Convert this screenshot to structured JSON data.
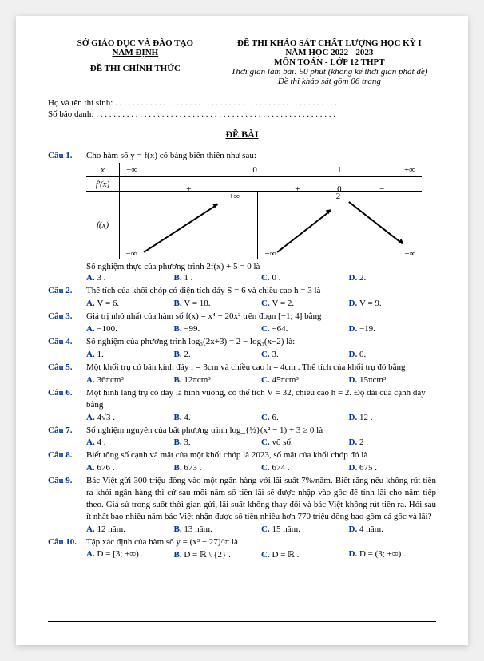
{
  "header": {
    "left_line1": "SỞ GIÁO DỤC VÀ ĐÀO TẠO",
    "left_line2": "NAM ĐỊNH",
    "left_box": "ĐỀ THI CHÍNH THỨC",
    "right_line1": "ĐỀ THI KHẢO SÁT CHẤT LƯỢNG HỌC KỲ I",
    "right_line2": "NĂM HỌC 2022 - 2023",
    "right_line3": "MÔN TOÁN - LỚP 12 THPT",
    "right_line4": "Thời gian làm bài: 90 phút (không kể thời gian phát đề)",
    "right_line5": "Đề thi khảo sát gồm 06 trang"
  },
  "student": {
    "name_label": "Họ và tên thí sinh: . . . . . . . . . . . . . . . . . . . . . . . . . . . . . . . . . . . . . . . . . . . . . . . . . . .",
    "id_label": "Số báo danh: . . . . . . . . . . . . . . . . . . . . . . . . . . . . . . . . . . . . . . . . . . . . . . . . . . . . . . ."
  },
  "section": "ĐỀ BÀI",
  "q1": {
    "num": "Câu 1.",
    "text": "Cho hàm số y = f(x) có bảng biến thiên như sau:",
    "x": "x",
    "fp": "f'(x)",
    "fx": "f(x)",
    "neg_inf": "−∞",
    "zero": "0",
    "one": "1",
    "pos_inf": "+∞",
    "plus": "+",
    "minus": "−",
    "v_posinf": "+∞",
    "v_neginf": "−∞",
    "v_neg2": "−2",
    "sub": "Số nghiệm thực của phương trình 2f(x) + 5 = 0 là",
    "A": "A. 3 .",
    "B": "B. 1 .",
    "C": "C. 0 .",
    "D": "D. 2."
  },
  "q2": {
    "num": "Câu 2.",
    "text": "Thể tích của khối chóp có diện tích đáy S = 6 và chiều cao h = 3 là",
    "A": "A. V = 6.",
    "B": "B. V = 18.",
    "C": "C. V = 2.",
    "D": "D. V = 9."
  },
  "q3": {
    "num": "Câu 3.",
    "text": "Giá trị nhỏ nhất của hàm số f(x) = x⁴ − 20x² trên đoạn [−1; 4] bằng",
    "A": "A. −100.",
    "B": "B. −99.",
    "C": "C. −64.",
    "D": "D. −19."
  },
  "q4": {
    "num": "Câu 4.",
    "text": "Số nghiệm của phương trình  log₃(2x+3) = 2 − log₃(x−2)  là:",
    "A": "A. 1.",
    "B": "B. 2.",
    "C": "C. 3.",
    "D": "D. 0."
  },
  "q5": {
    "num": "Câu 5.",
    "text": "Một khối trụ có bán kính đáy r = 3cm và chiều cao h = 4cm . Thể tích của khối trụ đó bằng",
    "A": "A. 36πcm³",
    "B": "B. 12πcm³",
    "C": "C. 45πcm³",
    "D": "D. 15πcm³"
  },
  "q6": {
    "num": "Câu 6.",
    "text": "Một hình lăng trụ có đáy là hình vuông, có thể tích V = 32, chiều cao h = 2. Độ dài của cạnh đáy bằng",
    "A": "A. 4√3 .",
    "B": "B. 4.",
    "C": "C. 6.",
    "D": "D. 12 ."
  },
  "q7": {
    "num": "Câu 7.",
    "text": "Số nghiệm nguyên của bất phương trình  log_{½}(x² − 1) + 3 ≥ 0  là",
    "A": "A. 4 .",
    "B": "B. 3.",
    "C": "C. vô số.",
    "D": "D. 2 ."
  },
  "q8": {
    "num": "Câu 8.",
    "text": "Biết tổng số cạnh và mặt của một khối chóp là 2023, số mặt của khối chóp đó là",
    "A": "A. 676 .",
    "B": "B. 673 .",
    "C": "C. 674 .",
    "D": "D. 675 ."
  },
  "q9": {
    "num": "Câu 9.",
    "text": "Bác Việt gửi 300 triệu đồng vào một ngân hàng với lãi suất 7%/năm. Biết rằng nếu không rút tiền ra khỏi ngân hàng thì cứ sau mỗi năm số tiền lãi sẽ được nhập vào gốc để tính lãi cho năm tiếp theo. Giả sử trong suốt thời gian gửi, lãi suất không thay đổi và bác Việt không rút tiền ra. Hỏi sau ít nhất bao nhiêu năm bác Việt nhận được số tiền nhiều hơn 770 triệu đồng bao gồm cả gốc và lãi?",
    "A": "A. 12 năm.",
    "B": "B. 13 năm.",
    "C": "C. 15 năm.",
    "D": "D. 4 năm."
  },
  "q10": {
    "num": "Câu 10.",
    "text": "Tập xác định của hàm số  y = (x³ − 27)^π  là",
    "A": "A. D = [3; +∞) .",
    "B": "B. D = ℝ \\ {2} .",
    "C": "C. D = ℝ .",
    "D": "D. D = (3; +∞) ."
  }
}
